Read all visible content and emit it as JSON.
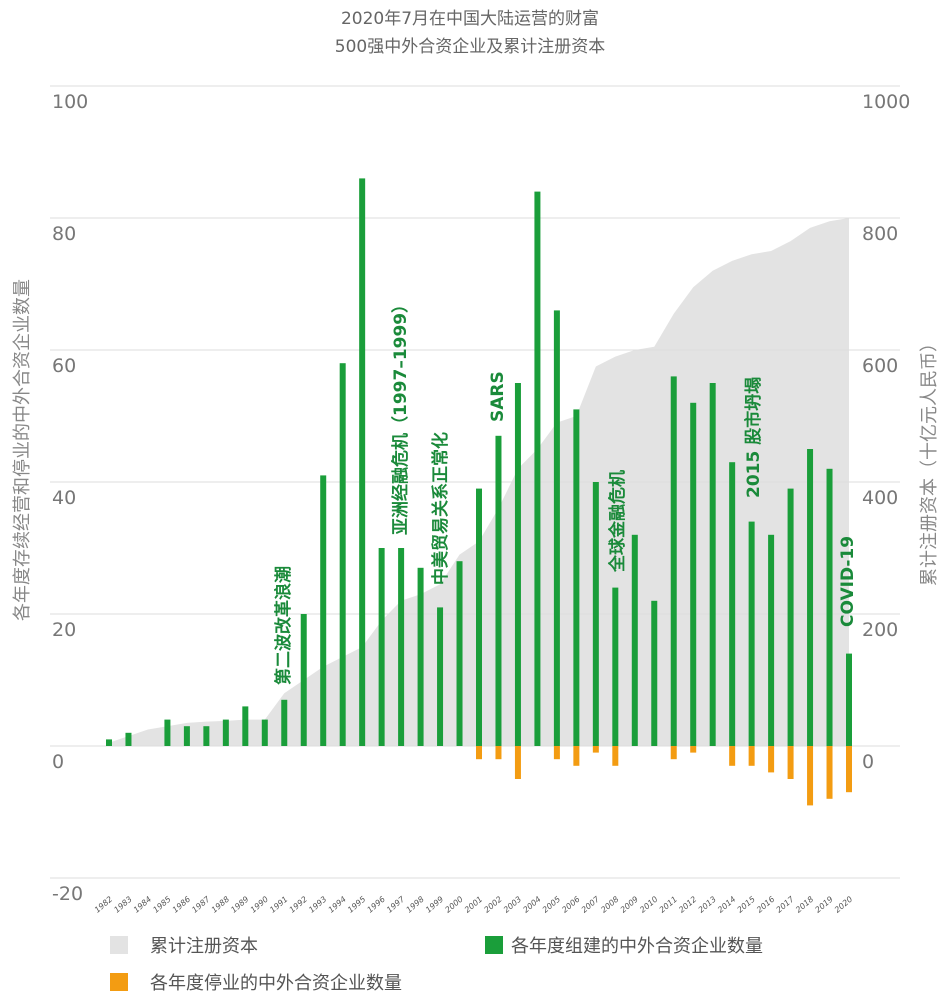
{
  "chart_data": {
    "type": "bar",
    "title": [
      "2020年7月在中国大陆运营的财富",
      "500强中外合资企业及累计注册资本"
    ],
    "y_label": "各年度存续经营和停业的中外合资企业数量",
    "y2_label": "累计注册资本（十亿元人民币）",
    "categories": [
      "1982",
      "1983",
      "1984",
      "1985",
      "1986",
      "1987",
      "1988",
      "1989",
      "1990",
      "1991",
      "1992",
      "1993",
      "1994",
      "1995",
      "1996",
      "1997",
      "1998",
      "1999",
      "2000",
      "2001",
      "2002",
      "2003",
      "2004",
      "2005",
      "2006",
      "2007",
      "2008",
      "2009",
      "2010",
      "2011",
      "2012",
      "2013",
      "2014",
      "2015",
      "2016",
      "2017",
      "2018",
      "2019",
      "2020"
    ],
    "series": [
      {
        "name": "累计注册资本",
        "color": "#e3e3e3",
        "axis": "y2",
        "kind": "area",
        "values": [
          5,
          15,
          25,
          30,
          35,
          37,
          38,
          40,
          40,
          80,
          100,
          120,
          135,
          150,
          190,
          220,
          230,
          245,
          290,
          310,
          360,
          420,
          450,
          490,
          500,
          575,
          590,
          600,
          605,
          655,
          695,
          720,
          735,
          745,
          750,
          765,
          785,
          795,
          800
        ]
      },
      {
        "name": "各年度组建的中外合资企业数量",
        "color": "#1a9e3a",
        "kind": "bar",
        "values": [
          1,
          2,
          0,
          4,
          3,
          3,
          4,
          6,
          4,
          7,
          20,
          41,
          58,
          86,
          30,
          30,
          27,
          21,
          28,
          39,
          47,
          55,
          84,
          66,
          51,
          40,
          24,
          32,
          22,
          56,
          52,
          55,
          43,
          34,
          32,
          39,
          45,
          42,
          14
        ]
      },
      {
        "name": "各年度停业的中外合资企业数量",
        "color": "#f39c12",
        "kind": "bar",
        "values": [
          0,
          0,
          0,
          0,
          0,
          0,
          0,
          0,
          0,
          0,
          0,
          0,
          0,
          0,
          0,
          0,
          0,
          0,
          0,
          -2,
          -2,
          -5,
          0,
          -2,
          -3,
          -1,
          -3,
          0,
          0,
          -2,
          -1,
          0,
          -3,
          -3,
          -4,
          -5,
          -9,
          -8,
          -7
        ]
      }
    ],
    "ylim": [
      -20,
      100
    ],
    "yticks": [
      -20,
      0,
      20,
      40,
      60,
      80,
      100
    ],
    "y2lim": [
      -200,
      1000
    ],
    "y2ticks": [
      0,
      200,
      400,
      600,
      800,
      1000
    ],
    "annotations": [
      "第二波改革浪潮",
      "亚洲经融危机（1997–1999）",
      "中美贸易关系正常化",
      "SARS",
      "全球金融危机",
      "2015 股市坍塌",
      "COVID-19"
    ],
    "grid": true
  }
}
